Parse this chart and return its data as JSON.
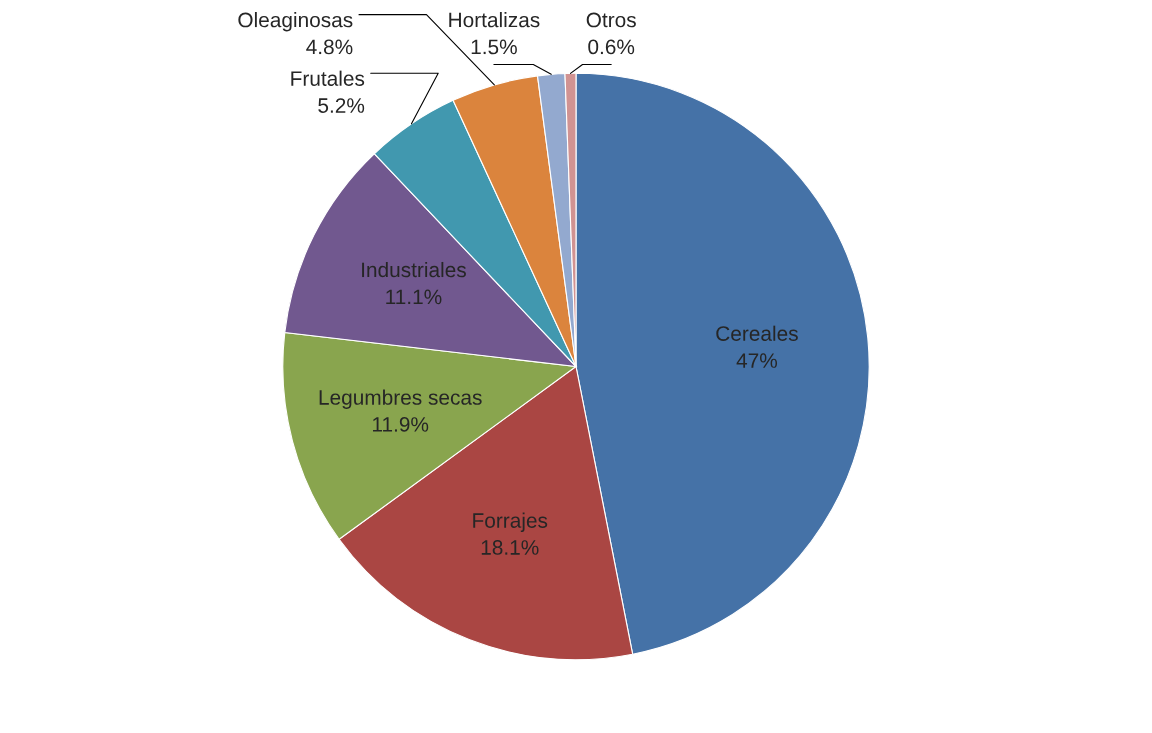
{
  "chart_data": {
    "type": "pie",
    "categories": [
      "Cereales",
      "Forrajes",
      "Legumbres secas",
      "Industriales",
      "Frutales",
      "Oleaginosas",
      "Hortalizas",
      "Otros"
    ],
    "values": [
      47,
      18.1,
      11.9,
      11.1,
      5.2,
      4.8,
      1.5,
      0.6
    ],
    "value_labels": [
      "47%",
      "18.1%",
      "11.9%",
      "11.1%",
      "5.2%",
      "4.8%",
      "1.5%",
      "0.6%"
    ],
    "colors": [
      "#4572a7",
      "#aa4643",
      "#89a54e",
      "#71588f",
      "#4198af",
      "#db843d",
      "#93a9cf",
      "#d19392"
    ],
    "legend": false
  }
}
